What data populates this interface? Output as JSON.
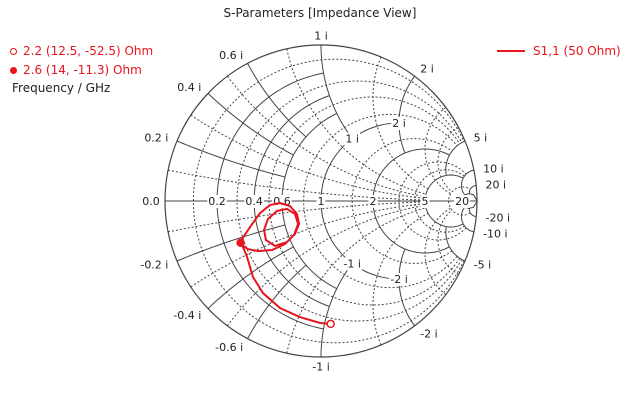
{
  "chart_data": {
    "type": "smith",
    "title": "S-Parameters [Impedance View]",
    "reference_impedance_ohm": 50,
    "resistance_ticks": [
      "0.0",
      "0.2",
      "0.4",
      "0.6",
      "1",
      "2",
      "5",
      "20"
    ],
    "resistance_values": [
      0,
      0.2,
      0.4,
      0.6,
      1,
      2,
      5,
      20
    ],
    "reactance_ticks_outer": [
      {
        "x": 0.2,
        "label": "0.2 i"
      },
      {
        "x": 0.4,
        "label": "0.4 i"
      },
      {
        "x": 0.6,
        "label": "0.6 i"
      },
      {
        "x": 1,
        "label": "1 i"
      },
      {
        "x": 2,
        "label": "2 i"
      },
      {
        "x": 5,
        "label": "5 i"
      },
      {
        "x": 10,
        "label": "10 i"
      },
      {
        "x": 20,
        "label": "20 i"
      },
      {
        "x": -0.2,
        "label": "-0.2 i"
      },
      {
        "x": -0.4,
        "label": "-0.4 i"
      },
      {
        "x": -0.6,
        "label": "-0.6 i"
      },
      {
        "x": -1,
        "label": "-1 i"
      },
      {
        "x": -2,
        "label": "-2 i"
      },
      {
        "x": -5,
        "label": "-5 i"
      },
      {
        "x": -10,
        "label": "-10 i"
      },
      {
        "x": -20,
        "label": "-20 i"
      }
    ],
    "reactance_ticks_inner": [
      {
        "x": 1,
        "label": "1 i"
      },
      {
        "x": 2,
        "label": "2 i"
      },
      {
        "x": -1,
        "label": "-1 i"
      },
      {
        "x": -2,
        "label": "-2 i"
      }
    ],
    "grid": true,
    "series": [
      {
        "name": "S1,1 (50 Ohm)",
        "color": "#e8141e",
        "gamma_points": [
          [
            0.058,
            -0.788
          ],
          [
            -0.006,
            -0.782
          ],
          [
            -0.135,
            -0.744
          ],
          [
            -0.263,
            -0.686
          ],
          [
            -0.372,
            -0.59
          ],
          [
            -0.436,
            -0.487
          ],
          [
            -0.474,
            -0.359
          ],
          [
            -0.5,
            -0.295
          ],
          [
            -0.519,
            -0.263
          ],
          [
            -0.455,
            -0.167
          ],
          [
            -0.391,
            -0.077
          ],
          [
            -0.327,
            -0.026
          ],
          [
            -0.263,
            -0.013
          ],
          [
            -0.199,
            -0.032
          ],
          [
            -0.154,
            -0.083
          ],
          [
            -0.141,
            -0.147
          ],
          [
            -0.167,
            -0.212
          ],
          [
            -0.218,
            -0.263
          ],
          [
            -0.295,
            -0.288
          ],
          [
            -0.353,
            -0.25
          ],
          [
            -0.365,
            -0.186
          ],
          [
            -0.34,
            -0.115
          ],
          [
            -0.282,
            -0.064
          ],
          [
            -0.218,
            -0.051
          ],
          [
            -0.167,
            -0.083
          ],
          [
            -0.147,
            -0.147
          ],
          [
            -0.173,
            -0.218
          ],
          [
            -0.231,
            -0.276
          ],
          [
            -0.314,
            -0.314
          ],
          [
            -0.404,
            -0.321
          ],
          [
            -0.468,
            -0.308
          ],
          [
            -0.5,
            -0.288
          ]
        ]
      }
    ],
    "legend_position": "top-right"
  },
  "markers": [
    {
      "label": "2.2  (12.5, -52.5) Ohm",
      "freq_ghz": 2.2,
      "r_ohm": 12.5,
      "x_ohm": -52.5,
      "style": "open"
    },
    {
      "label": "2.6  (14, -11.3) Ohm",
      "freq_ghz": 2.6,
      "r_ohm": 14,
      "x_ohm": -11.3,
      "style": "filled"
    }
  ],
  "marker_axis_label": "Frequency / GHz",
  "legend": {
    "label": "S1,1 (50 Ohm)"
  }
}
